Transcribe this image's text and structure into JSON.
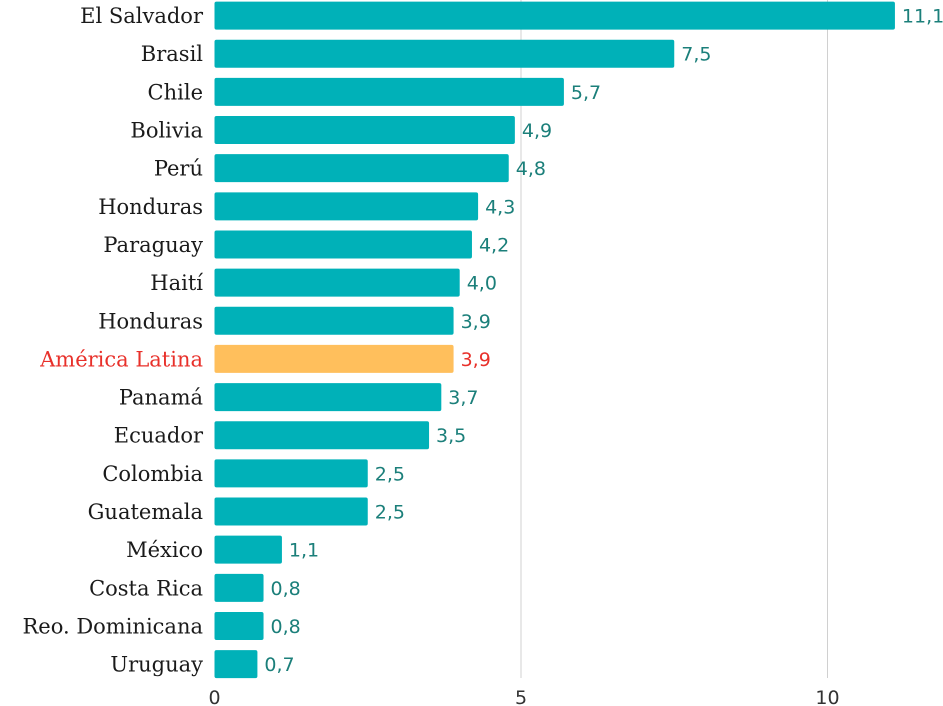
{
  "chart_data": {
    "type": "bar",
    "orientation": "horizontal",
    "categories": [
      "El Salvador",
      "Brasil",
      "Chile",
      "Bolivia",
      "Perú",
      "Honduras",
      "Paraguay",
      "Haití",
      "Honduras",
      "América Latina",
      "Panamá",
      "Ecuador",
      "Colombia",
      "Guatemala",
      "México",
      "Costa Rica",
      "Reo. Dominicana",
      "Uruguay"
    ],
    "values": [
      11.1,
      7.5,
      5.7,
      4.9,
      4.8,
      4.3,
      4.2,
      4.0,
      3.9,
      3.9,
      3.7,
      3.5,
      2.5,
      2.5,
      1.1,
      0.8,
      0.8,
      0.7
    ],
    "value_labels": [
      "11,1",
      "7,5",
      "5,7",
      "4,9",
      "4,8",
      "4,3",
      "4,2",
      "4,0",
      "3,9",
      "3,9",
      "3,7",
      "3,5",
      "2,5",
      "2,5",
      "1,1",
      "0,8",
      "0,8",
      "0,7"
    ],
    "highlight_index": 9,
    "xlim": [
      0,
      11.8
    ],
    "xticks": [
      0,
      5,
      10
    ],
    "xtick_labels": [
      "0",
      "5",
      "10"
    ],
    "grid": true,
    "legend": "none",
    "colors": {
      "bar": "#00b1b8",
      "highlight_bar": "#ffbf5c",
      "value_label": "#1b7f7a",
      "highlight_text": "#e8302a",
      "grid": "#d0d0d0"
    }
  }
}
